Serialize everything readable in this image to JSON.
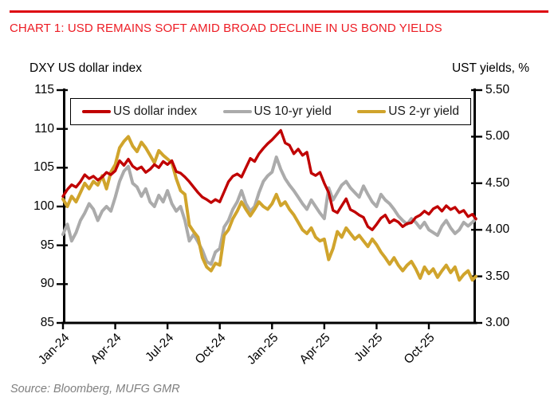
{
  "header": {
    "title": "CHART 1: USD REMAINS SOFT AMID BROAD DECLINE IN US BOND YIELDS"
  },
  "colors": {
    "title_red": "#ed1c24",
    "rule_red": "#dd0510",
    "dollar_index_red": "#c00000",
    "yield10_gray": "#ababab",
    "yield2_gold": "#d0a42c",
    "axis_black": "#000000",
    "source_gray": "#7f7f7f"
  },
  "footer": {
    "source": "Source: Bloomberg, MUFG GMR"
  },
  "chart_data": {
    "type": "line",
    "grid": false,
    "legend_position": "top",
    "left_axis": {
      "title": "DXY US dollar index",
      "min": 85,
      "max": 115,
      "ticks": [
        115,
        110,
        105,
        100,
        95,
        90,
        85
      ]
    },
    "right_axis": {
      "title": "UST yields, %",
      "min": 3.0,
      "max": 5.5,
      "ticks": [
        "5.50",
        "5.00",
        "4.50",
        "4.00",
        "3.50",
        "3.00"
      ]
    },
    "x_axis": {
      "tick_labels": [
        "Jan-24",
        "Apr-24",
        "Jul-24",
        "Oct-24",
        "Jan-25",
        "Apr-25",
        "Jul-25",
        "Oct-25"
      ],
      "tick_months": [
        0,
        3,
        6,
        9,
        12,
        15,
        18,
        21
      ],
      "months_span": 23.7
    },
    "series": [
      {
        "id": "us-10yr-yield",
        "name": "US 10-yr yield",
        "axis": "right",
        "color": "#ababab",
        "stroke_width": 4,
        "points": [
          [
            0,
            3.95
          ],
          [
            0.25,
            4.06
          ],
          [
            0.5,
            3.88
          ],
          [
            0.75,
            3.97
          ],
          [
            1,
            4.1
          ],
          [
            1.25,
            4.18
          ],
          [
            1.5,
            4.28
          ],
          [
            1.75,
            4.22
          ],
          [
            2,
            4.1
          ],
          [
            2.25,
            4.2
          ],
          [
            2.5,
            4.25
          ],
          [
            2.75,
            4.2
          ],
          [
            3,
            4.35
          ],
          [
            3.25,
            4.52
          ],
          [
            3.5,
            4.63
          ],
          [
            3.75,
            4.68
          ],
          [
            4,
            4.5
          ],
          [
            4.25,
            4.46
          ],
          [
            4.5,
            4.36
          ],
          [
            4.75,
            4.44
          ],
          [
            5,
            4.3
          ],
          [
            5.25,
            4.25
          ],
          [
            5.5,
            4.37
          ],
          [
            5.75,
            4.3
          ],
          [
            6,
            4.42
          ],
          [
            6.25,
            4.28
          ],
          [
            6.5,
            4.2
          ],
          [
            6.75,
            4.25
          ],
          [
            7,
            4.1
          ],
          [
            7.25,
            3.88
          ],
          [
            7.5,
            3.95
          ],
          [
            7.75,
            3.87
          ],
          [
            8,
            3.78
          ],
          [
            8.25,
            3.66
          ],
          [
            8.5,
            3.63
          ],
          [
            8.75,
            3.76
          ],
          [
            9,
            3.8
          ],
          [
            9.25,
            4.03
          ],
          [
            9.5,
            4.1
          ],
          [
            9.75,
            4.22
          ],
          [
            10,
            4.3
          ],
          [
            10.25,
            4.42
          ],
          [
            10.5,
            4.28
          ],
          [
            10.75,
            4.2
          ],
          [
            11,
            4.25
          ],
          [
            11.25,
            4.4
          ],
          [
            11.5,
            4.52
          ],
          [
            11.75,
            4.58
          ],
          [
            12,
            4.62
          ],
          [
            12.25,
            4.78
          ],
          [
            12.5,
            4.65
          ],
          [
            12.75,
            4.55
          ],
          [
            13,
            4.48
          ],
          [
            13.25,
            4.42
          ],
          [
            13.5,
            4.35
          ],
          [
            13.75,
            4.28
          ],
          [
            14,
            4.22
          ],
          [
            14.25,
            4.32
          ],
          [
            14.5,
            4.25
          ],
          [
            14.75,
            4.18
          ],
          [
            15,
            4.12
          ],
          [
            15.25,
            4.45
          ],
          [
            15.5,
            4.32
          ],
          [
            15.75,
            4.4
          ],
          [
            16,
            4.48
          ],
          [
            16.25,
            4.52
          ],
          [
            16.5,
            4.45
          ],
          [
            16.75,
            4.4
          ],
          [
            17,
            4.35
          ],
          [
            17.25,
            4.47
          ],
          [
            17.5,
            4.38
          ],
          [
            17.75,
            4.3
          ],
          [
            18,
            4.25
          ],
          [
            18.25,
            4.38
          ],
          [
            18.5,
            4.32
          ],
          [
            18.75,
            4.28
          ],
          [
            19,
            4.22
          ],
          [
            19.25,
            4.15
          ],
          [
            19.5,
            4.1
          ],
          [
            19.75,
            4.06
          ],
          [
            20,
            4.12
          ],
          [
            20.25,
            4.08
          ],
          [
            20.5,
            4.02
          ],
          [
            20.75,
            4.08
          ],
          [
            21,
            4.0
          ],
          [
            21.25,
            3.97
          ],
          [
            21.5,
            3.94
          ],
          [
            21.75,
            4.04
          ],
          [
            22,
            4.1
          ],
          [
            22.25,
            4.02
          ],
          [
            22.5,
            3.96
          ],
          [
            22.75,
            4.0
          ],
          [
            23,
            4.08
          ],
          [
            23.25,
            4.04
          ],
          [
            23.5,
            4.08
          ],
          [
            23.7,
            4.12
          ]
        ]
      },
      {
        "id": "us-2yr-yield",
        "name": "US 2-yr yield",
        "axis": "right",
        "color": "#d0a42c",
        "stroke_width": 4,
        "points": [
          [
            0,
            4.33
          ],
          [
            0.25,
            4.25
          ],
          [
            0.5,
            4.36
          ],
          [
            0.75,
            4.3
          ],
          [
            1,
            4.4
          ],
          [
            1.25,
            4.5
          ],
          [
            1.5,
            4.44
          ],
          [
            1.75,
            4.52
          ],
          [
            2,
            4.48
          ],
          [
            2.25,
            4.58
          ],
          [
            2.5,
            4.44
          ],
          [
            2.75,
            4.62
          ],
          [
            3,
            4.7
          ],
          [
            3.25,
            4.88
          ],
          [
            3.5,
            4.95
          ],
          [
            3.75,
            5.0
          ],
          [
            4,
            4.9
          ],
          [
            4.25,
            4.84
          ],
          [
            4.5,
            4.94
          ],
          [
            4.75,
            4.88
          ],
          [
            5,
            4.8
          ],
          [
            5.25,
            4.72
          ],
          [
            5.5,
            4.85
          ],
          [
            5.75,
            4.8
          ],
          [
            6,
            4.76
          ],
          [
            6.25,
            4.72
          ],
          [
            6.5,
            4.55
          ],
          [
            6.75,
            4.42
          ],
          [
            7,
            4.38
          ],
          [
            7.25,
            4.05
          ],
          [
            7.5,
            3.98
          ],
          [
            7.75,
            3.92
          ],
          [
            8,
            3.7
          ],
          [
            8.25,
            3.6
          ],
          [
            8.5,
            3.56
          ],
          [
            8.75,
            3.64
          ],
          [
            9,
            3.62
          ],
          [
            9.25,
            3.94
          ],
          [
            9.5,
            4.0
          ],
          [
            9.75,
            4.12
          ],
          [
            10,
            4.2
          ],
          [
            10.25,
            4.3
          ],
          [
            10.5,
            4.22
          ],
          [
            10.75,
            4.15
          ],
          [
            11,
            4.22
          ],
          [
            11.25,
            4.3
          ],
          [
            11.5,
            4.25
          ],
          [
            11.75,
            4.22
          ],
          [
            12,
            4.28
          ],
          [
            12.25,
            4.38
          ],
          [
            12.5,
            4.26
          ],
          [
            12.75,
            4.3
          ],
          [
            13,
            4.22
          ],
          [
            13.25,
            4.16
          ],
          [
            13.5,
            4.08
          ],
          [
            13.75,
            4.0
          ],
          [
            14,
            3.96
          ],
          [
            14.25,
            4.02
          ],
          [
            14.5,
            3.92
          ],
          [
            14.75,
            3.88
          ],
          [
            15,
            3.9
          ],
          [
            15.25,
            3.68
          ],
          [
            15.5,
            3.8
          ],
          [
            15.75,
            3.98
          ],
          [
            16,
            3.92
          ],
          [
            16.25,
            4.02
          ],
          [
            16.5,
            3.96
          ],
          [
            16.75,
            3.9
          ],
          [
            17,
            3.94
          ],
          [
            17.25,
            3.88
          ],
          [
            17.5,
            3.82
          ],
          [
            17.75,
            3.9
          ],
          [
            18,
            3.84
          ],
          [
            18.25,
            3.76
          ],
          [
            18.5,
            3.7
          ],
          [
            18.75,
            3.63
          ],
          [
            19,
            3.7
          ],
          [
            19.25,
            3.62
          ],
          [
            19.5,
            3.56
          ],
          [
            19.75,
            3.62
          ],
          [
            20,
            3.66
          ],
          [
            20.25,
            3.58
          ],
          [
            20.5,
            3.48
          ],
          [
            20.75,
            3.6
          ],
          [
            21,
            3.53
          ],
          [
            21.25,
            3.58
          ],
          [
            21.5,
            3.49
          ],
          [
            21.75,
            3.56
          ],
          [
            22,
            3.62
          ],
          [
            22.25,
            3.54
          ],
          [
            22.5,
            3.6
          ],
          [
            22.75,
            3.46
          ],
          [
            23,
            3.52
          ],
          [
            23.25,
            3.56
          ],
          [
            23.5,
            3.46
          ],
          [
            23.7,
            3.5
          ]
        ]
      },
      {
        "id": "us-dollar-index",
        "name": "US dollar index",
        "axis": "left",
        "color": "#c00000",
        "stroke_width": 3.4,
        "points": [
          [
            0,
            101.3
          ],
          [
            0.25,
            102.2
          ],
          [
            0.5,
            102.8
          ],
          [
            0.75,
            102.5
          ],
          [
            1,
            103.2
          ],
          [
            1.25,
            104.1
          ],
          [
            1.5,
            103.6
          ],
          [
            1.75,
            103.9
          ],
          [
            2,
            103.4
          ],
          [
            2.25,
            103.8
          ],
          [
            2.5,
            104.4
          ],
          [
            2.75,
            104.1
          ],
          [
            3,
            104.6
          ],
          [
            3.25,
            105.9
          ],
          [
            3.5,
            105.3
          ],
          [
            3.75,
            106.1
          ],
          [
            4,
            105.2
          ],
          [
            4.25,
            104.8
          ],
          [
            4.5,
            105.1
          ],
          [
            4.75,
            104.4
          ],
          [
            5,
            104.8
          ],
          [
            5.25,
            105.4
          ],
          [
            5.5,
            105.0
          ],
          [
            5.75,
            105.8
          ],
          [
            6,
            105.4
          ],
          [
            6.25,
            105.9
          ],
          [
            6.5,
            104.5
          ],
          [
            6.75,
            104.3
          ],
          [
            7,
            103.8
          ],
          [
            7.25,
            103.2
          ],
          [
            7.5,
            102.5
          ],
          [
            7.75,
            101.8
          ],
          [
            8,
            101.2
          ],
          [
            8.25,
            100.9
          ],
          [
            8.5,
            100.5
          ],
          [
            8.75,
            100.9
          ],
          [
            9,
            100.6
          ],
          [
            9.25,
            101.9
          ],
          [
            9.5,
            103.2
          ],
          [
            9.75,
            103.9
          ],
          [
            10,
            104.2
          ],
          [
            10.25,
            103.8
          ],
          [
            10.5,
            105.0
          ],
          [
            10.75,
            106.2
          ],
          [
            11,
            105.8
          ],
          [
            11.25,
            106.8
          ],
          [
            11.5,
            107.5
          ],
          [
            11.75,
            108.1
          ],
          [
            12,
            108.6
          ],
          [
            12.25,
            109.2
          ],
          [
            12.5,
            109.8
          ],
          [
            12.75,
            108.2
          ],
          [
            13,
            107.9
          ],
          [
            13.25,
            106.8
          ],
          [
            13.5,
            107.4
          ],
          [
            13.75,
            106.6
          ],
          [
            14,
            107.0
          ],
          [
            14.25,
            104.3
          ],
          [
            14.5,
            104.0
          ],
          [
            14.75,
            104.4
          ],
          [
            15,
            103.0
          ],
          [
            15.25,
            101.8
          ],
          [
            15.5,
            99.5
          ],
          [
            15.75,
            99.2
          ],
          [
            16,
            100.1
          ],
          [
            16.25,
            101.0
          ],
          [
            16.5,
            99.6
          ],
          [
            16.75,
            99.3
          ],
          [
            17,
            98.9
          ],
          [
            17.25,
            98.6
          ],
          [
            17.5,
            97.4
          ],
          [
            17.75,
            97.0
          ],
          [
            18,
            97.7
          ],
          [
            18.25,
            98.5
          ],
          [
            18.5,
            98.9
          ],
          [
            18.75,
            97.9
          ],
          [
            19,
            98.3
          ],
          [
            19.25,
            98.0
          ],
          [
            19.5,
            97.4
          ],
          [
            19.75,
            97.8
          ],
          [
            20,
            97.9
          ],
          [
            20.25,
            98.6
          ],
          [
            20.5,
            98.9
          ],
          [
            20.75,
            99.4
          ],
          [
            21,
            99.0
          ],
          [
            21.25,
            99.7
          ],
          [
            21.5,
            100.0
          ],
          [
            21.75,
            99.4
          ],
          [
            22,
            100.1
          ],
          [
            22.25,
            99.6
          ],
          [
            22.5,
            99.9
          ],
          [
            22.75,
            99.2
          ],
          [
            23,
            99.5
          ],
          [
            23.25,
            98.7
          ],
          [
            23.5,
            99.0
          ],
          [
            23.7,
            98.4
          ]
        ]
      }
    ]
  }
}
